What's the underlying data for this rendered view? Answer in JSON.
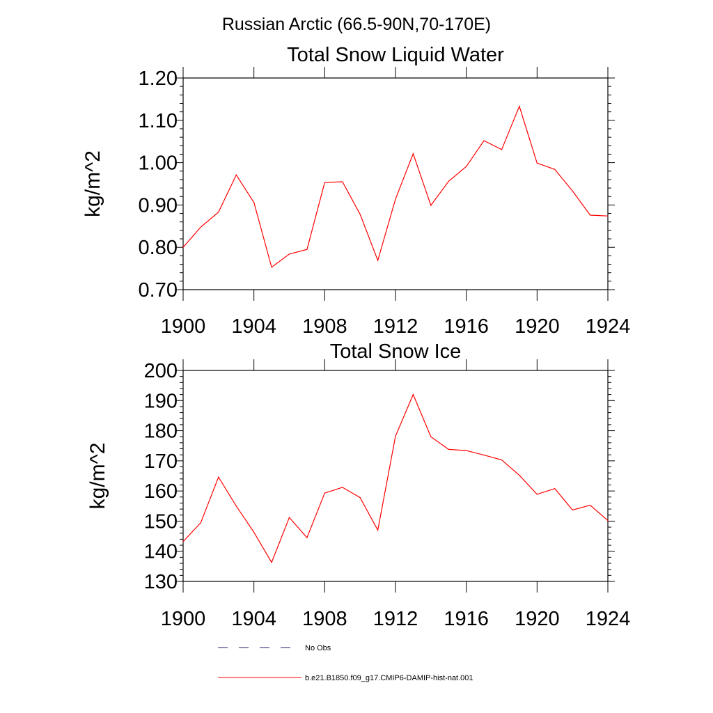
{
  "figure": {
    "main_title": "Russian Arctic (66.5-90N,70-170E)"
  },
  "chart_data": [
    {
      "type": "line",
      "title": "Total Snow Liquid Water",
      "xlabel": "",
      "ylabel": "kg/m^2",
      "xlim": [
        1900,
        1924
      ],
      "ylim": [
        0.7,
        1.2
      ],
      "x_ticks": [
        "1900",
        "1904",
        "1908",
        "1912",
        "1916",
        "1920",
        "1924"
      ],
      "y_ticks": [
        "0.70",
        "0.80",
        "0.90",
        "1.00",
        "1.10",
        "1.20"
      ],
      "x": [
        1900,
        1901,
        1902,
        1903,
        1904,
        1905,
        1906,
        1907,
        1908,
        1909,
        1910,
        1911,
        1912,
        1913,
        1914,
        1915,
        1916,
        1917,
        1918,
        1919,
        1920,
        1921,
        1922,
        1923,
        1924
      ],
      "series": [
        {
          "name": "b.e21.B1850.f09_g17.CMIP6-DAMIP-hist-nat.001",
          "color": "#ff0000",
          "values": [
            0.8,
            0.848,
            0.883,
            0.971,
            0.906,
            0.753,
            0.784,
            0.795,
            0.953,
            0.955,
            0.878,
            0.769,
            0.914,
            1.021,
            0.899,
            0.956,
            0.991,
            1.052,
            1.031,
            1.133,
            0.999,
            0.984,
            0.933,
            0.876,
            0.874
          ]
        }
      ]
    },
    {
      "type": "line",
      "title": "Total Snow Ice",
      "xlabel": "",
      "ylabel": "kg/m^2",
      "xlim": [
        1900,
        1924
      ],
      "ylim": [
        130,
        200
      ],
      "x_ticks": [
        "1900",
        "1904",
        "1908",
        "1912",
        "1916",
        "1920",
        "1924"
      ],
      "y_ticks": [
        "130",
        "140",
        "150",
        "160",
        "170",
        "180",
        "190",
        "200"
      ],
      "x": [
        1900,
        1901,
        1902,
        1903,
        1904,
        1905,
        1906,
        1907,
        1908,
        1909,
        1910,
        1911,
        1912,
        1913,
        1914,
        1915,
        1916,
        1917,
        1918,
        1919,
        1920,
        1921,
        1922,
        1923,
        1924
      ],
      "series": [
        {
          "name": "b.e21.B1850.f09_g17.CMIP6-DAMIP-hist-nat.001",
          "color": "#ff0000",
          "values": [
            143.2,
            149.5,
            164.6,
            155.0,
            146.3,
            136.3,
            151.2,
            144.5,
            159.3,
            161.2,
            157.8,
            147.0,
            178.2,
            192.0,
            178.0,
            173.8,
            173.4,
            171.9,
            170.3,
            165.2,
            158.9,
            160.8,
            153.7,
            155.3,
            150.2
          ]
        }
      ]
    }
  ],
  "legend": {
    "items": [
      {
        "label": "No Obs",
        "style": "dashed",
        "color": "#1a1a6e"
      },
      {
        "label": "b.e21.B1850.f09_g17.CMIP6-DAMIP-hist-nat.001",
        "style": "solid",
        "color": "#ff0000"
      }
    ]
  }
}
